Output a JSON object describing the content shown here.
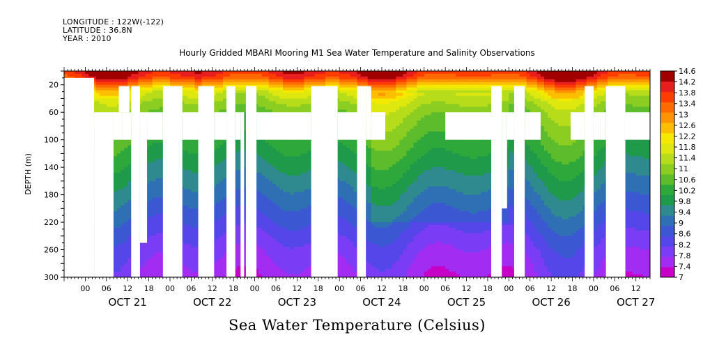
{
  "header": {
    "longitude": "LONGITUDE : 122W(-122)",
    "latitude": "LATITUDE : 36.8N",
    "year": "YEAR : 2010"
  },
  "chart_data": {
    "type": "heatmap",
    "title": "Hourly Gridded MBARI Mooring M1 Sea Water Temperature and Salinity Observations",
    "subtitle": "Sea Water Temperature (Celsius)",
    "ylabel": "DEPTH (m)",
    "xlabel": "",
    "x_unit": "hours since OCT 21 00:00, 2010",
    "xlim": [
      -6,
      160
    ],
    "ylim": [
      300,
      0
    ],
    "y_ticks": [
      20,
      60,
      100,
      140,
      180,
      220,
      260,
      300
    ],
    "x_hour_ticks": [
      {
        "h": 0,
        "label": "00"
      },
      {
        "h": 6,
        "label": "06"
      },
      {
        "h": 12,
        "label": "12"
      },
      {
        "h": 18,
        "label": "18"
      },
      {
        "h": 24,
        "label": "00"
      },
      {
        "h": 30,
        "label": "06"
      },
      {
        "h": 36,
        "label": "12"
      },
      {
        "h": 42,
        "label": "18"
      },
      {
        "h": 48,
        "label": "00"
      },
      {
        "h": 54,
        "label": "06"
      },
      {
        "h": 60,
        "label": "12"
      },
      {
        "h": 66,
        "label": "18"
      },
      {
        "h": 72,
        "label": "00"
      },
      {
        "h": 78,
        "label": "06"
      },
      {
        "h": 84,
        "label": "12"
      },
      {
        "h": 90,
        "label": "18"
      },
      {
        "h": 96,
        "label": "00"
      },
      {
        "h": 102,
        "label": "06"
      },
      {
        "h": 108,
        "label": "12"
      },
      {
        "h": 114,
        "label": "18"
      },
      {
        "h": 120,
        "label": "00"
      },
      {
        "h": 126,
        "label": "06"
      },
      {
        "h": 132,
        "label": "12"
      },
      {
        "h": 138,
        "label": "18"
      },
      {
        "h": 144,
        "label": "00"
      },
      {
        "h": 150,
        "label": "06"
      },
      {
        "h": 156,
        "label": "12"
      }
    ],
    "day_labels": [
      {
        "h": 12,
        "label": "OCT 21"
      },
      {
        "h": 36,
        "label": "OCT 22"
      },
      {
        "h": 60,
        "label": "OCT 23"
      },
      {
        "h": 84,
        "label": "OCT 24"
      },
      {
        "h": 108,
        "label": "OCT 25"
      },
      {
        "h": 132,
        "label": "OCT 26"
      },
      {
        "h": 156,
        "label": "OCT 27"
      }
    ],
    "colorbar_levels": [
      7,
      7.4,
      7.8,
      8.2,
      8.6,
      9,
      9.4,
      9.8,
      10.2,
      10.6,
      11,
      11.4,
      11.8,
      12.2,
      12.6,
      13,
      13.4,
      13.8,
      14.2,
      14.6
    ],
    "colorbar_labels": [
      "14.6",
      "14.2",
      "13.8",
      "13.4",
      "13",
      "12.6",
      "12.2",
      "11.8",
      "11.4",
      "11",
      "10.6",
      "10.2",
      "9.8",
      "9.4",
      "9",
      "8.6",
      "8.2",
      "7.8",
      "7.4",
      "7"
    ],
    "colors": [
      "#c600c6",
      "#a32cf2",
      "#7a3cf5",
      "#5446e8",
      "#3b58d2",
      "#2f70b4",
      "#2e8a8e",
      "#1f9a4a",
      "#2ea83a",
      "#5cbc2c",
      "#8ccd22",
      "#b6dc1a",
      "#dfe80e",
      "#f6e900",
      "#fbbe00",
      "#fd9400",
      "#fe6a00",
      "#ff3c00",
      "#e81e1e",
      "#a00000"
    ],
    "temperature_profile": [
      {
        "depth": 0,
        "temp": 14.5
      },
      {
        "depth": 10,
        "temp": 14.0
      },
      {
        "depth": 20,
        "temp": 13.0
      },
      {
        "depth": 30,
        "temp": 12.0
      },
      {
        "depth": 45,
        "temp": 11.4
      },
      {
        "depth": 60,
        "temp": 11.0
      },
      {
        "depth": 80,
        "temp": 10.7
      },
      {
        "depth": 100,
        "temp": 10.4
      },
      {
        "depth": 140,
        "temp": 9.8
      },
      {
        "depth": 180,
        "temp": 9.2
      },
      {
        "depth": 220,
        "temp": 8.6
      },
      {
        "depth": 260,
        "temp": 8.0
      },
      {
        "depth": 300,
        "temp": 7.6
      }
    ],
    "missing_data": [
      {
        "x0": -6,
        "x1": 2.5,
        "y0": 10,
        "y1": 300
      },
      {
        "x0": 2.5,
        "x1": 8,
        "y0": 60,
        "y1": 300
      },
      {
        "x0": 8,
        "x1": 10.5,
        "y0": 60,
        "y1": 100
      },
      {
        "x0": 10.5,
        "x1": 13,
        "y0": 60,
        "y1": 100
      },
      {
        "x0": 9.5,
        "x1": 12.5,
        "y0": 22,
        "y1": 60
      },
      {
        "x0": 13,
        "x1": 15.5,
        "y0": 22,
        "y1": 300
      },
      {
        "x0": 15.5,
        "x1": 17.5,
        "y0": 60,
        "y1": 250
      },
      {
        "x0": 17.5,
        "x1": 22,
        "y0": 60,
        "y1": 100
      },
      {
        "x0": 22,
        "x1": 27.5,
        "y0": 22,
        "y1": 300
      },
      {
        "x0": 27.5,
        "x1": 32,
        "y0": 60,
        "y1": 100
      },
      {
        "x0": 32,
        "x1": 36.5,
        "y0": 22,
        "y1": 300
      },
      {
        "x0": 36.5,
        "x1": 40,
        "y0": 60,
        "y1": 100
      },
      {
        "x0": 40,
        "x1": 42.5,
        "y0": 22,
        "y1": 300
      },
      {
        "x0": 42.5,
        "x1": 44,
        "y0": 60,
        "y1": 100
      },
      {
        "x0": 44,
        "x1": 45,
        "y0": 60,
        "y1": 300
      },
      {
        "x0": 45.5,
        "x1": 48.5,
        "y0": 22,
        "y1": 300
      },
      {
        "x0": 48.5,
        "x1": 64,
        "y0": 60,
        "y1": 100
      },
      {
        "x0": 64,
        "x1": 71.5,
        "y0": 22,
        "y1": 300
      },
      {
        "x0": 71.5,
        "x1": 77,
        "y0": 60,
        "y1": 100
      },
      {
        "x0": 77,
        "x1": 79.5,
        "y0": 22,
        "y1": 300
      },
      {
        "x0": 79.5,
        "x1": 81,
        "y0": 22,
        "y1": 100
      },
      {
        "x0": 81,
        "x1": 85,
        "y0": 60,
        "y1": 100
      },
      {
        "x0": 102,
        "x1": 115,
        "y0": 60,
        "y1": 100
      },
      {
        "x0": 115,
        "x1": 118,
        "y0": 22,
        "y1": 300
      },
      {
        "x0": 118,
        "x1": 119.5,
        "y0": 60,
        "y1": 200
      },
      {
        "x0": 119.5,
        "x1": 121.5,
        "y0": 60,
        "y1": 100
      },
      {
        "x0": 121.5,
        "x1": 124.5,
        "y0": 22,
        "y1": 300
      },
      {
        "x0": 124.5,
        "x1": 129,
        "y0": 60,
        "y1": 100
      },
      {
        "x0": 137.5,
        "x1": 141.5,
        "y0": 60,
        "y1": 100
      },
      {
        "x0": 141.5,
        "x1": 144,
        "y0": 22,
        "y1": 300
      },
      {
        "x0": 144,
        "x1": 146,
        "y0": 60,
        "y1": 100
      },
      {
        "x0": 146,
        "x1": 147.5,
        "y0": 60,
        "y1": 100
      },
      {
        "x0": 147.5,
        "x1": 153,
        "y0": 22,
        "y1": 300
      },
      {
        "x0": 153,
        "x1": 160,
        "y0": 60,
        "y1": 100
      }
    ]
  }
}
